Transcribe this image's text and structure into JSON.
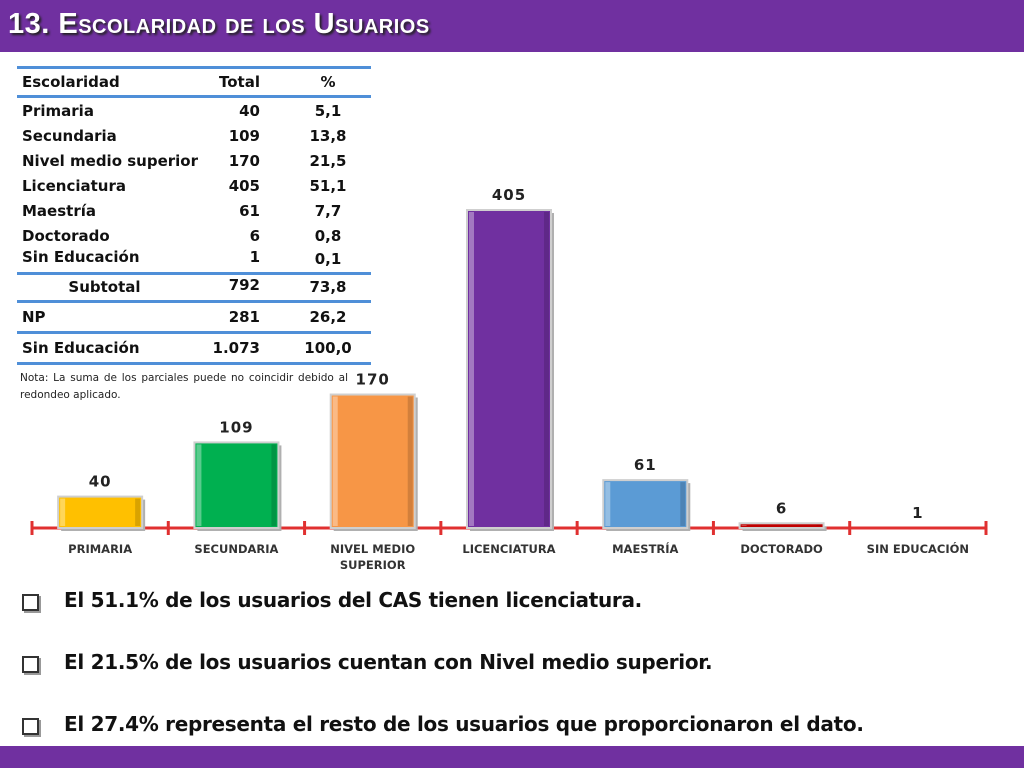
{
  "header": {
    "title": "13. Escolaridad de los Usuarios"
  },
  "table": {
    "headers": [
      "Escolaridad",
      "Total",
      "%"
    ],
    "rows": [
      [
        "Primaria",
        "40",
        "5,1"
      ],
      [
        "Secundaria",
        "109",
        "13,8"
      ],
      [
        "Nivel medio superior",
        "170",
        "21,5"
      ],
      [
        "Licenciatura",
        "405",
        "51,1"
      ],
      [
        "Maestría",
        "61",
        "7,7"
      ],
      [
        "Doctorado",
        "6",
        "0,8"
      ],
      [
        "Sin Educación",
        "1",
        "0,1"
      ]
    ],
    "subtotal": [
      "Subtotal",
      "792",
      "73,8"
    ],
    "np": [
      "NP",
      "281",
      "26,2"
    ],
    "total": [
      "Sin Educación",
      "1.073",
      "100,0"
    ],
    "note": "Nota: La suma de los parciales puede no coincidir debido al redondeo aplicado."
  },
  "colors": {
    "header_bg": "#7030a0",
    "table_line": "#4f8fd8",
    "axis": "#e03030"
  },
  "chart_data": {
    "type": "bar",
    "categories": [
      "PRIMARIA",
      "SECUNDARIA",
      "NIVEL MEDIO SUPERIOR",
      "LICENCIATURA",
      "MAESTRÍA",
      "DOCTORADO",
      "SIN EDUCACIÓN"
    ],
    "values": [
      40,
      109,
      170,
      405,
      61,
      6,
      1
    ],
    "data_labels": [
      "40",
      "109",
      "170",
      "405",
      "61",
      "6",
      "1"
    ],
    "colors": [
      "#ffc000",
      "#00b050",
      "#f79646",
      "#7030a0",
      "#5b9bd5",
      "#c00000",
      "#c00000"
    ],
    "title": "",
    "xlabel": "",
    "ylabel": "",
    "ylim": [
      0,
      405
    ],
    "grid": false,
    "legend": "none"
  },
  "bullets": [
    "El 51.1% de los usuarios del CAS tienen licenciatura.",
    "El 21.5% de los usuarios cuentan con Nivel medio superior.",
    "El  27.4% representa el resto de los usuarios que proporcionaron el dato."
  ]
}
